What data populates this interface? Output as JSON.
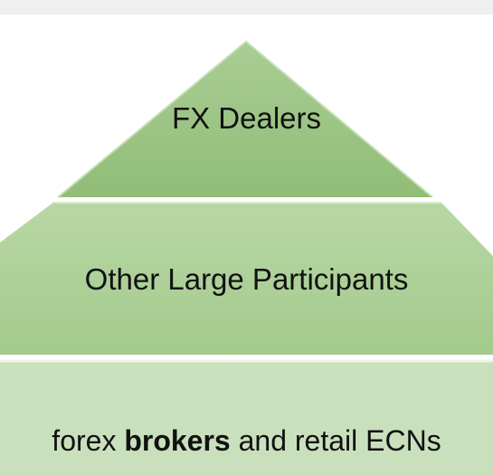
{
  "pyramid": {
    "tiers": [
      {
        "label": "FX Dealers",
        "color": "#9dc585"
      },
      {
        "label": "Other Large Participants",
        "color": "#aed198"
      },
      {
        "label_before": "forex ",
        "label_bold": "brokers",
        "label_after": " and retail ECNs",
        "color": "#c9e0bd"
      }
    ]
  }
}
